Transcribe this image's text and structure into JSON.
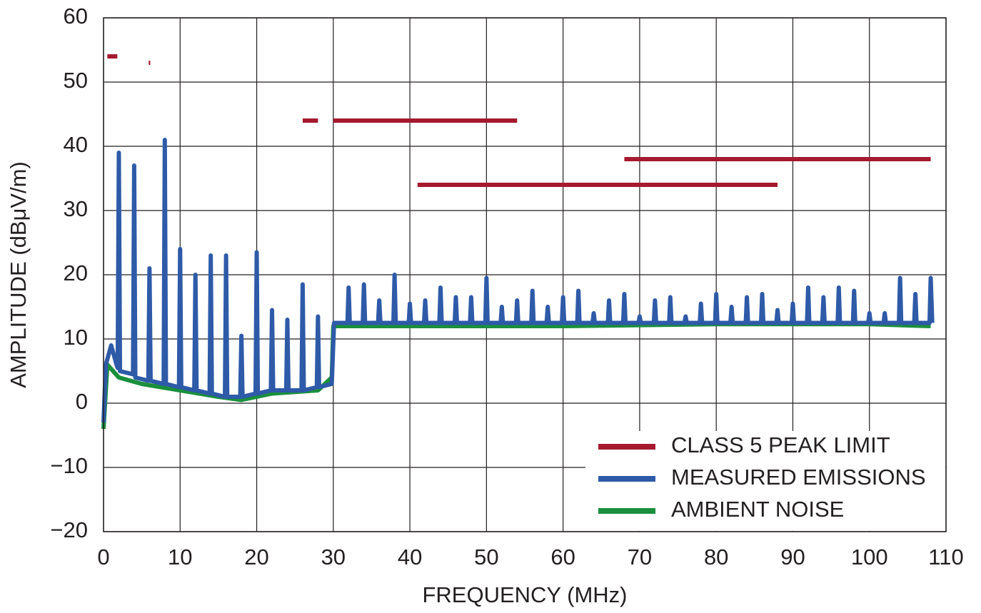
{
  "chart_data": {
    "type": "line",
    "xlabel": "FREQUENCY (MHz)",
    "ylabel": "AMPLITUDE (dBμV/m)",
    "xlim": [
      0,
      110
    ],
    "xticks": [
      0,
      10,
      20,
      30,
      40,
      50,
      60,
      70,
      80,
      90,
      100,
      110
    ],
    "ylim": [
      -20,
      60
    ],
    "yticks": [
      {
        "value": -20,
        "label": "−20"
      },
      {
        "value": -10,
        "label": "−10"
      },
      0,
      10,
      20,
      30,
      40,
      50,
      60
    ],
    "grid": true,
    "legend": "lower right",
    "series": [
      {
        "name": "CLASS 5 PEAK LIMIT",
        "color": "#a6192e",
        "x": [
          0.5,
          1.8,
          null,
          5.9,
          6.1,
          null,
          26,
          28,
          null,
          30,
          54,
          null,
          41,
          88,
          null,
          68,
          108
        ],
        "values": [
          54,
          54,
          null,
          53,
          53,
          null,
          44,
          44,
          null,
          44,
          44,
          null,
          34,
          34,
          null,
          38,
          38
        ]
      },
      {
        "name": "MEASURED EMISSIONS",
        "color": "#2e5aa8",
        "x": [
          0,
          0.3,
          1,
          1.7,
          1.85,
          2,
          2.15,
          3.85,
          4,
          4.15,
          5.85,
          6,
          6.15,
          7.85,
          8,
          8.15,
          9.85,
          10,
          10.15,
          11.85,
          12,
          12.15,
          13.85,
          14,
          14.15,
          15.85,
          16,
          16.15,
          17.85,
          18,
          18.15,
          19.85,
          20,
          20.15,
          21.85,
          22,
          22.15,
          23.85,
          24,
          24.15,
          25.85,
          26,
          26.15,
          27.85,
          28,
          28.15,
          29.8,
          30.1,
          31.85,
          32,
          32.15,
          33.85,
          34,
          34.15,
          35.85,
          36,
          36.15,
          37.85,
          38,
          38.15,
          39.85,
          40,
          40.15,
          41.85,
          42,
          42.15,
          43.85,
          44,
          44.15,
          45.85,
          46,
          46.15,
          47.85,
          48,
          48.15,
          49.85,
          50,
          50.15,
          51.85,
          52,
          52.15,
          53.85,
          54,
          54.15,
          55.85,
          56,
          56.15,
          57.85,
          58,
          58.15,
          59.85,
          60,
          60.15,
          61.85,
          62,
          62.15,
          63.85,
          64,
          64.15,
          65.85,
          66,
          66.15,
          67.85,
          68,
          68.15,
          69.85,
          70,
          70.15,
          71.85,
          72,
          72.15,
          73.85,
          74,
          74.15,
          75.85,
          76,
          76.15,
          77.85,
          78,
          78.15,
          79.85,
          80,
          80.15,
          81.85,
          82,
          82.15,
          83.85,
          84,
          84.15,
          85.85,
          86,
          86.15,
          87.85,
          88,
          88.15,
          89.85,
          90,
          90.15,
          91.85,
          92,
          92.15,
          93.85,
          94,
          94.15,
          95.85,
          96,
          96.15,
          97.85,
          98,
          98.15,
          99.85,
          100,
          100.15,
          101.85,
          102,
          102.15,
          103.85,
          104,
          104.15,
          105.85,
          106,
          106.15,
          107.85,
          108,
          108.2
        ],
        "values": [
          -3,
          6,
          9,
          6,
          5.5,
          39,
          5,
          4.5,
          37,
          4,
          3.5,
          21,
          3.5,
          3,
          41,
          3,
          2.5,
          24,
          2.5,
          2,
          20,
          2,
          1.5,
          23,
          1.5,
          1,
          23,
          1,
          1,
          10.5,
          1,
          1.5,
          23.5,
          1.5,
          2,
          14.5,
          2,
          2,
          13,
          2,
          2,
          18.5,
          2,
          2.5,
          13.5,
          2.5,
          3,
          12.5,
          12.5,
          18,
          12.5,
          12.5,
          18.5,
          12.5,
          12.5,
          16,
          12.5,
          12.5,
          20,
          12.5,
          12.5,
          15.5,
          12.5,
          12.5,
          16,
          12.5,
          12.5,
          18,
          12.5,
          12.5,
          16.5,
          12.5,
          12.5,
          16.5,
          12.5,
          12.5,
          19.5,
          12.5,
          12.5,
          15,
          12.5,
          12.5,
          16,
          12.5,
          12.5,
          17.5,
          12.5,
          12.5,
          15,
          12.5,
          12.5,
          16.5,
          12.5,
          12.5,
          17.5,
          12.5,
          12.5,
          14,
          12.5,
          12.5,
          16,
          12.5,
          12.5,
          17,
          12.5,
          12.5,
          13.5,
          12.5,
          12.5,
          16,
          12.5,
          12.5,
          16.5,
          12.5,
          12.5,
          13.5,
          12.5,
          12.5,
          15.5,
          12.5,
          12.5,
          17,
          12.5,
          12.5,
          15,
          12.5,
          12.5,
          16.5,
          12.5,
          12.5,
          17,
          12.5,
          12.5,
          14.5,
          12.5,
          12.5,
          15.5,
          12.5,
          12.5,
          18,
          12.5,
          12.5,
          16.5,
          12.5,
          12.5,
          18,
          12.5,
          12.5,
          17.5,
          12.5,
          12.5,
          14,
          12.5,
          12.5,
          14,
          12.5,
          12.5,
          19.5,
          12.5,
          12.5,
          17,
          12.5,
          12.5,
          19.5,
          12.5
        ]
      },
      {
        "name": "AMBIENT NOISE",
        "color": "#1a8f3c",
        "x": [
          0,
          0.5,
          2,
          5,
          10,
          15,
          18,
          22,
          28,
          29.8,
          30,
          40,
          60,
          80,
          100,
          108
        ],
        "values": [
          -4,
          6,
          4,
          3,
          2,
          1,
          0.5,
          1.5,
          2,
          4,
          12,
          12,
          12,
          12.3,
          12.3,
          12
        ]
      }
    ]
  }
}
